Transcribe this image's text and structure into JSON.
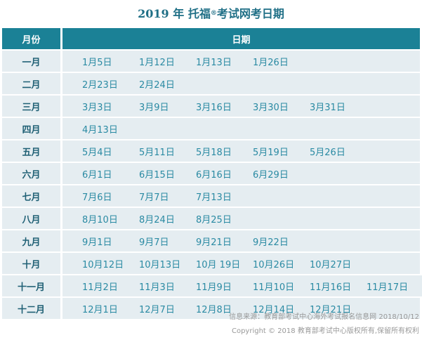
{
  "title": {
    "main": "2019 年 托福",
    "reg": "®",
    "rest": "考试网考日期"
  },
  "table": {
    "header": {
      "month": "月份",
      "dates": "日期"
    },
    "rows": [
      {
        "month": "一月",
        "dates": [
          "1月5日",
          "1月12日",
          "1月13日",
          "1月26日"
        ]
      },
      {
        "month": "二月",
        "dates": [
          "2月23日",
          "2月24日"
        ]
      },
      {
        "month": "三月",
        "dates": [
          "3月3日",
          "3月9日",
          "3月16日",
          "3月30日",
          "3月31日"
        ]
      },
      {
        "month": "四月",
        "dates": [
          "4月13日"
        ]
      },
      {
        "month": "五月",
        "dates": [
          "5月4日",
          "5月11日",
          "5月18日",
          "5月19日",
          "5月26日"
        ]
      },
      {
        "month": "六月",
        "dates": [
          "6月1日",
          "6月15日",
          "6月16日",
          "6月29日"
        ]
      },
      {
        "month": "七月",
        "dates": [
          "7月6日",
          "7月7日",
          "7月13日"
        ]
      },
      {
        "month": "八月",
        "dates": [
          "8月10日",
          "8月24日",
          "8月25日"
        ]
      },
      {
        "month": "九月",
        "dates": [
          "9月1日",
          "9月7日",
          "9月21日",
          "9月22日"
        ]
      },
      {
        "month": "十月",
        "dates": [
          "10月12日",
          "10月13日",
          "10月 19日",
          "10月26日",
          "10月27日"
        ]
      },
      {
        "month": "十一月",
        "dates": [
          "11月2日",
          "11月3日",
          "11月9日",
          "11月10日",
          "11月16日",
          "11月17日"
        ]
      },
      {
        "month": "十二月",
        "dates": [
          "12月1日",
          "12月7日",
          "12月8日",
          "12月14日",
          "12月21日"
        ]
      }
    ]
  },
  "footer": {
    "source": "信息来源：教育部考试中心海外考试报名信息网 2018/10/12",
    "copyright": "Copyright © 2018 教育部考试中心版权所有,保留所有权利"
  },
  "colors": {
    "header_bg": "#1b8196",
    "row_bg": "#e5edf1",
    "title": "#1f6f86",
    "date_text": "#2a8aa3",
    "month_text": "#1e5f74"
  }
}
